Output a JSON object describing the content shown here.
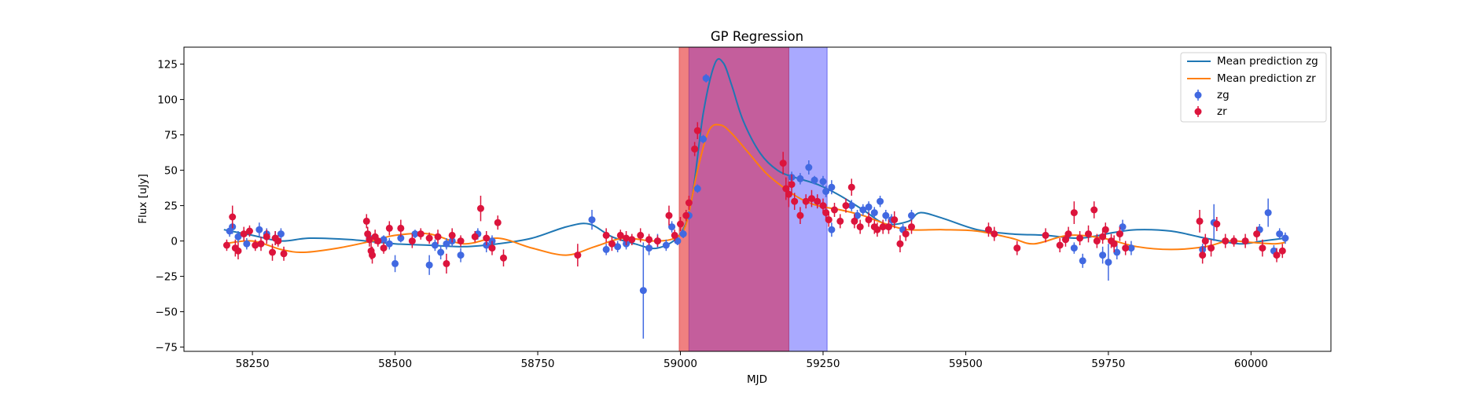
{
  "chart_data": {
    "type": "scatter",
    "title": "GP Regression",
    "xlabel": "MJD",
    "ylabel": "Flux [uJy]",
    "xlim": [
      58130,
      60140
    ],
    "ylim": [
      -78,
      137
    ],
    "xticks": [
      58250,
      58500,
      58750,
      59000,
      59250,
      59500,
      59750,
      60000
    ],
    "yticks": [
      -75,
      -50,
      -25,
      0,
      25,
      50,
      75,
      100,
      125
    ],
    "grid": false,
    "legend_position": "top-right",
    "colors": {
      "mean_zg": "#1f77b4",
      "mean_zr": "#ff7f0e",
      "zg": "#4169e1",
      "zr": "#dc143c",
      "span_red": "#f08080",
      "span_blue": "#7b7bff",
      "span_overlap": "#c45e9c"
    },
    "spans": [
      {
        "x0": 58998,
        "x1": 59190,
        "color": "red"
      },
      {
        "x0": 59015,
        "x1": 59257,
        "color": "blue"
      }
    ],
    "series": [
      {
        "name": "Mean prediction zg",
        "kind": "line",
        "x": [
          58200,
          58250,
          58300,
          58350,
          58420,
          58500,
          58560,
          58620,
          58680,
          58740,
          58800,
          58840,
          58880,
          58920,
          58960,
          59000,
          59020,
          59040,
          59060,
          59075,
          59090,
          59110,
          59140,
          59170,
          59200,
          59240,
          59280,
          59320,
          59360,
          59400,
          59420,
          59460,
          59520,
          59580,
          59640,
          59700,
          59760,
          59800,
          59860,
          59920,
          59980,
          60020,
          60060
        ],
        "y": [
          8,
          4,
          0,
          2,
          1,
          -2,
          -3,
          -4,
          -2,
          2,
          10,
          12,
          3,
          -2,
          -5,
          5,
          30,
          90,
          125,
          126,
          110,
          85,
          62,
          50,
          45,
          40,
          32,
          22,
          12,
          14,
          20,
          16,
          8,
          5,
          4,
          2,
          6,
          8,
          7,
          2,
          -2,
          0,
          2
        ]
      },
      {
        "name": "Mean prediction zr",
        "kind": "line",
        "x": [
          58200,
          58250,
          58300,
          58340,
          58400,
          58460,
          58500,
          58560,
          58620,
          58680,
          58740,
          58800,
          58850,
          58900,
          58950,
          58990,
          59010,
          59030,
          59050,
          59070,
          59090,
          59120,
          59150,
          59180,
          59210,
          59240,
          59280,
          59320,
          59360,
          59400,
          59460,
          59520,
          59580,
          59620,
          59680,
          59740,
          59800,
          59860,
          59920,
          59960,
          60000,
          60040,
          60060
        ],
        "y": [
          -2,
          0,
          -6,
          -8,
          -5,
          0,
          4,
          5,
          -2,
          2,
          -5,
          -10,
          -4,
          2,
          0,
          2,
          12,
          50,
          78,
          82,
          76,
          62,
          48,
          38,
          30,
          25,
          22,
          18,
          12,
          8,
          8,
          7,
          2,
          -2,
          4,
          2,
          -4,
          -6,
          -4,
          0,
          -1,
          -2,
          -1
        ]
      },
      {
        "name": "zg",
        "kind": "errorbar",
        "points": [
          [
            58210,
            7,
            4
          ],
          [
            58215,
            10,
            5
          ],
          [
            58225,
            3,
            4
          ],
          [
            58240,
            -2,
            4
          ],
          [
            58262,
            8,
            5
          ],
          [
            58275,
            5,
            4
          ],
          [
            58290,
            2,
            5
          ],
          [
            58300,
            5,
            4
          ],
          [
            58455,
            2,
            4
          ],
          [
            58480,
            1,
            3
          ],
          [
            58490,
            -2,
            4
          ],
          [
            58500,
            -16,
            6
          ],
          [
            58510,
            2,
            3
          ],
          [
            58535,
            5,
            3
          ],
          [
            58560,
            -17,
            7
          ],
          [
            58570,
            -3,
            4
          ],
          [
            58580,
            -8,
            5
          ],
          [
            58590,
            -2,
            4
          ],
          [
            58600,
            0,
            4
          ],
          [
            58615,
            -10,
            5
          ],
          [
            58645,
            5,
            4
          ],
          [
            58660,
            -3,
            5
          ],
          [
            58670,
            0,
            4
          ],
          [
            58845,
            15,
            7
          ],
          [
            58870,
            -6,
            4
          ],
          [
            58890,
            -4,
            4
          ],
          [
            58905,
            -2,
            4
          ],
          [
            58935,
            -35,
            34
          ],
          [
            58945,
            -5,
            5
          ],
          [
            58960,
            0,
            5
          ],
          [
            58975,
            -3,
            4
          ],
          [
            58985,
            10,
            4
          ],
          [
            58995,
            0,
            3
          ],
          [
            59005,
            5,
            3
          ],
          [
            59015,
            18,
            3
          ],
          [
            59030,
            37,
            3
          ],
          [
            59040,
            72,
            3
          ],
          [
            59045,
            115,
            3
          ],
          [
            59195,
            45,
            4
          ],
          [
            59210,
            44,
            4
          ],
          [
            59225,
            52,
            5
          ],
          [
            59235,
            43,
            3
          ],
          [
            59250,
            42,
            4
          ],
          [
            59255,
            35,
            4
          ],
          [
            59265,
            38,
            5
          ],
          [
            59265,
            8,
            5
          ],
          [
            59300,
            25,
            4
          ],
          [
            59310,
            18,
            4
          ],
          [
            59320,
            22,
            4
          ],
          [
            59330,
            24,
            4
          ],
          [
            59340,
            20,
            4
          ],
          [
            59350,
            28,
            4
          ],
          [
            59360,
            18,
            4
          ],
          [
            59370,
            15,
            4
          ],
          [
            59390,
            8,
            4
          ],
          [
            59405,
            18,
            4
          ],
          [
            59690,
            -5,
            4
          ],
          [
            59705,
            -14,
            5
          ],
          [
            59740,
            -10,
            6
          ],
          [
            59750,
            -15,
            13
          ],
          [
            59765,
            -8,
            5
          ],
          [
            59775,
            10,
            5
          ],
          [
            59790,
            -5,
            5
          ],
          [
            59915,
            -6,
            4
          ],
          [
            59935,
            13,
            13
          ],
          [
            60015,
            8,
            4
          ],
          [
            60030,
            20,
            10
          ],
          [
            60040,
            -7,
            4
          ],
          [
            60050,
            5,
            4
          ],
          [
            60060,
            2,
            4
          ]
        ]
      },
      {
        "name": "zr",
        "kind": "errorbar",
        "points": [
          [
            58205,
            -3,
            4
          ],
          [
            58215,
            17,
            8
          ],
          [
            58220,
            -5,
            6
          ],
          [
            58225,
            -7,
            6
          ],
          [
            58235,
            5,
            5
          ],
          [
            58245,
            7,
            4
          ],
          [
            58255,
            -3,
            4
          ],
          [
            58265,
            -2,
            5
          ],
          [
            58275,
            3,
            5
          ],
          [
            58285,
            -8,
            6
          ],
          [
            58290,
            2,
            5
          ],
          [
            58295,
            0,
            4
          ],
          [
            58305,
            -9,
            5
          ],
          [
            58450,
            14,
            5
          ],
          [
            58452,
            5,
            5
          ],
          [
            58455,
            1,
            5
          ],
          [
            58458,
            -7,
            6
          ],
          [
            58460,
            -10,
            6
          ],
          [
            58465,
            3,
            5
          ],
          [
            58470,
            0,
            4
          ],
          [
            58480,
            -5,
            4
          ],
          [
            58490,
            9,
            5
          ],
          [
            58510,
            9,
            6
          ],
          [
            58530,
            0,
            5
          ],
          [
            58545,
            5,
            4
          ],
          [
            58560,
            2,
            4
          ],
          [
            58575,
            3,
            5
          ],
          [
            58590,
            -16,
            7
          ],
          [
            58600,
            4,
            5
          ],
          [
            58615,
            0,
            4
          ],
          [
            58640,
            3,
            4
          ],
          [
            58650,
            23,
            9
          ],
          [
            58660,
            2,
            5
          ],
          [
            58670,
            -5,
            5
          ],
          [
            58680,
            13,
            5
          ],
          [
            58690,
            -12,
            6
          ],
          [
            58820,
            -10,
            8
          ],
          [
            58870,
            4,
            5
          ],
          [
            58880,
            -2,
            5
          ],
          [
            58895,
            4,
            4
          ],
          [
            58905,
            2,
            5
          ],
          [
            58915,
            1,
            4
          ],
          [
            58930,
            4,
            5
          ],
          [
            58945,
            1,
            4
          ],
          [
            58960,
            0,
            4
          ],
          [
            58980,
            18,
            7
          ],
          [
            58990,
            4,
            4
          ],
          [
            59000,
            12,
            5
          ],
          [
            59010,
            18,
            4
          ],
          [
            59015,
            27,
            5
          ],
          [
            59025,
            65,
            5
          ],
          [
            59030,
            78,
            6
          ],
          [
            59180,
            55,
            8
          ],
          [
            59185,
            37,
            8
          ],
          [
            59190,
            33,
            9
          ],
          [
            59195,
            40,
            7
          ],
          [
            59200,
            28,
            6
          ],
          [
            59210,
            18,
            6
          ],
          [
            59220,
            28,
            5
          ],
          [
            59230,
            30,
            6
          ],
          [
            59240,
            28,
            5
          ],
          [
            59250,
            25,
            5
          ],
          [
            59255,
            20,
            6
          ],
          [
            59260,
            15,
            5
          ],
          [
            59270,
            22,
            5
          ],
          [
            59280,
            14,
            5
          ],
          [
            59290,
            25,
            5
          ],
          [
            59300,
            38,
            6
          ],
          [
            59305,
            14,
            5
          ],
          [
            59315,
            10,
            5
          ],
          [
            59330,
            15,
            5
          ],
          [
            59340,
            10,
            5
          ],
          [
            59345,
            8,
            5
          ],
          [
            59355,
            10,
            5
          ],
          [
            59365,
            10,
            5
          ],
          [
            59375,
            15,
            6
          ],
          [
            59385,
            -2,
            6
          ],
          [
            59395,
            5,
            5
          ],
          [
            59405,
            10,
            5
          ],
          [
            59540,
            8,
            5
          ],
          [
            59550,
            5,
            5
          ],
          [
            59590,
            -5,
            5
          ],
          [
            59640,
            4,
            5
          ],
          [
            59665,
            -3,
            5
          ],
          [
            59675,
            1,
            5
          ],
          [
            59680,
            5,
            5
          ],
          [
            59690,
            20,
            8
          ],
          [
            59700,
            2,
            5
          ],
          [
            59715,
            5,
            6
          ],
          [
            59725,
            22,
            6
          ],
          [
            59730,
            0,
            5
          ],
          [
            59740,
            3,
            5
          ],
          [
            59745,
            8,
            5
          ],
          [
            59755,
            0,
            5
          ],
          [
            59760,
            -2,
            6
          ],
          [
            59770,
            5,
            5
          ],
          [
            59780,
            -5,
            5
          ],
          [
            59910,
            14,
            8
          ],
          [
            59915,
            -10,
            6
          ],
          [
            59920,
            0,
            5
          ],
          [
            59930,
            -5,
            6
          ],
          [
            59940,
            12,
            5
          ],
          [
            59955,
            0,
            5
          ],
          [
            59970,
            0,
            4
          ],
          [
            59990,
            0,
            5
          ],
          [
            60010,
            5,
            5
          ],
          [
            60020,
            -5,
            6
          ],
          [
            60045,
            -10,
            5
          ],
          [
            60055,
            -7,
            5
          ]
        ]
      }
    ]
  }
}
